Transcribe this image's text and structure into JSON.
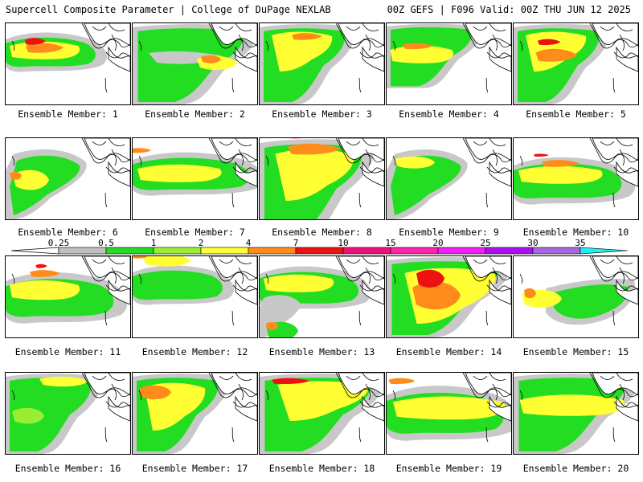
{
  "header": {
    "title_left": "Supercell Composite Parameter | College of DuPage NEXLAB",
    "title_right": "00Z GEFS | F096 Valid: 00Z THU JUN 12 2025"
  },
  "members": [
    {
      "label": "Ensemble Member: 1"
    },
    {
      "label": "Ensemble Member: 2"
    },
    {
      "label": "Ensemble Member: 3"
    },
    {
      "label": "Ensemble Member: 4"
    },
    {
      "label": "Ensemble Member: 5"
    },
    {
      "label": "Ensemble Member: 6"
    },
    {
      "label": "Ensemble Member: 7"
    },
    {
      "label": "Ensemble Member: 8"
    },
    {
      "label": "Ensemble Member: 9"
    },
    {
      "label": "Ensemble Member: 10"
    },
    {
      "label": "Ensemble Member: 11"
    },
    {
      "label": "Ensemble Member: 12"
    },
    {
      "label": "Ensemble Member: 13"
    },
    {
      "label": "Ensemble Member: 14"
    },
    {
      "label": "Ensemble Member: 15"
    },
    {
      "label": "Ensemble Member: 16"
    },
    {
      "label": "Ensemble Member: 17"
    },
    {
      "label": "Ensemble Member: 18"
    },
    {
      "label": "Ensemble Member: 19"
    },
    {
      "label": "Ensemble Member: 20"
    }
  ],
  "colorbar": {
    "ticks": [
      "0.25",
      "0.5",
      "1",
      "2",
      "4",
      "7",
      "10",
      "15",
      "20",
      "25",
      "30",
      "35"
    ],
    "colors": [
      "#c0c0c0",
      "#22dd22",
      "#99ee33",
      "#ffff33",
      "#ff8c1a",
      "#ee1111",
      "#ee1177",
      "#ff22aa",
      "#ee22ee",
      "#aa11ee",
      "#aa66dd",
      "#22eeee"
    ]
  },
  "palette": {
    "gray": "#c8c8c8",
    "green": "#22dd22",
    "lightgreen": "#99ee33",
    "yellow": "#ffff33",
    "orange": "#ff8c1a",
    "red": "#ee1111"
  }
}
